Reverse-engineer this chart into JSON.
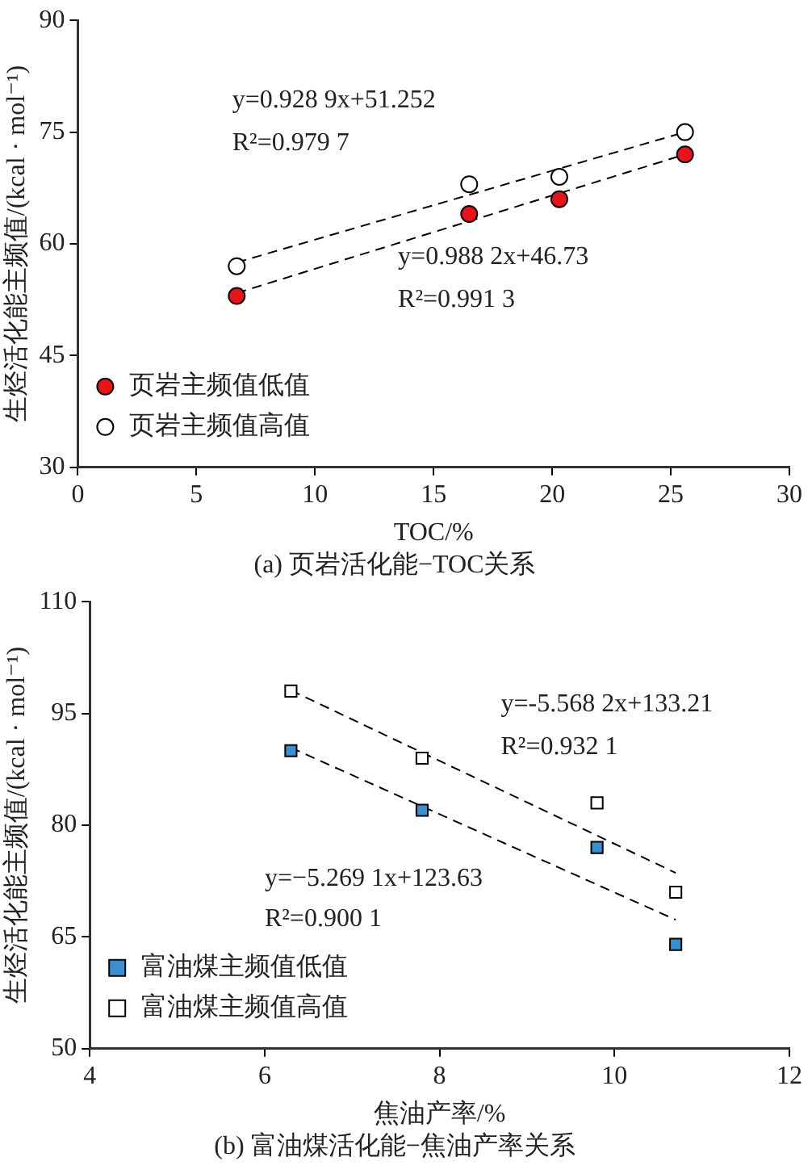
{
  "chart_data": [
    {
      "type": "scatter",
      "title": "(a) 页岩活化能−TOC关系",
      "xlabel": "TOC/%",
      "ylabel": "生烃活化能主频值/(kcal · mol⁻¹)",
      "xlim": [
        0,
        30
      ],
      "xticks": [
        0,
        5,
        10,
        15,
        20,
        25,
        30
      ],
      "ylim": [
        30,
        90
      ],
      "yticks": [
        30,
        45,
        60,
        75,
        90
      ],
      "grid": false,
      "legend": "bottom left",
      "series": [
        {
          "name": "页岩主频值低值",
          "marker": "circle",
          "color": "#e8141b",
          "x": [
            6.7,
            16.5,
            20.3,
            25.6
          ],
          "values": [
            53,
            64,
            66,
            72
          ]
        },
        {
          "name": "页岩主频值高值",
          "marker": "circle",
          "color": "#ffffff",
          "x": [
            6.7,
            16.5,
            20.3,
            25.6
          ],
          "values": [
            57,
            68,
            69,
            75
          ]
        },
        {
          "type": "line",
          "line_style": "dashed",
          "color": "#000000",
          "x": [
            6.7,
            25.6
          ],
          "values": [
            57.5,
            75.0
          ]
        },
        {
          "type": "line",
          "line_style": "dashed",
          "color": "#000000",
          "x": [
            6.7,
            25.6
          ],
          "values": [
            53.4,
            72.0
          ]
        }
      ],
      "annotations": [
        "y=0.928 9x+51.252",
        "R²=0.979 7",
        "y=0.988 2x+46.73",
        "R²=0.991 3"
      ]
    },
    {
      "type": "scatter",
      "title": "(b) 富油煤活化能−焦油产率关系",
      "xlabel": "焦油产率/%",
      "ylabel": "生烃活化能主频值/(kcal · mol⁻¹)",
      "xlim": [
        4,
        12
      ],
      "xticks": [
        4,
        6,
        8,
        10,
        12
      ],
      "ylim": [
        50,
        110
      ],
      "yticks": [
        50,
        65,
        80,
        95,
        110
      ],
      "grid": false,
      "legend": "bottom left",
      "series": [
        {
          "name": "富油煤主频值低值",
          "marker": "square",
          "color": "#3a8fd0",
          "x": [
            6.3,
            7.8,
            9.8,
            10.7
          ],
          "values": [
            90,
            82,
            77,
            64
          ]
        },
        {
          "name": "富油煤主频值高值",
          "marker": "square",
          "color": "#ffffff",
          "x": [
            6.3,
            7.8,
            9.8,
            10.7
          ],
          "values": [
            98,
            89,
            83,
            71
          ]
        },
        {
          "type": "line",
          "line_style": "dashed",
          "color": "#000000",
          "x": [
            6.3,
            10.7
          ],
          "values": [
            98.1,
            73.6
          ]
        },
        {
          "type": "line",
          "line_style": "dashed",
          "color": "#000000",
          "x": [
            6.3,
            10.7
          ],
          "values": [
            90.4,
            67.3
          ]
        }
      ],
      "annotations": [
        "y=-5.568 2x+133.21",
        "R²=0.932 1",
        "y=−5.269 1x+123.63",
        "R²=0.900 1"
      ]
    }
  ]
}
